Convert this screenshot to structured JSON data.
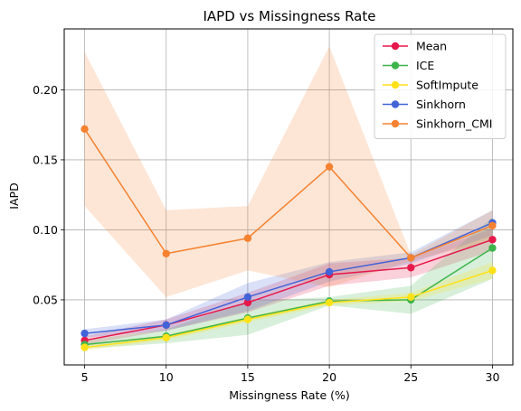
{
  "chart_data": {
    "type": "line",
    "title": "IAPD vs Missingness Rate",
    "xlabel": "Missingness Rate (%)",
    "ylabel": "IAPD",
    "x": [
      5,
      10,
      15,
      20,
      25,
      30
    ],
    "xticks": [
      "5",
      "10",
      "15",
      "20",
      "25",
      "30"
    ],
    "yticks": [
      0.05,
      0.1,
      0.15,
      0.2
    ],
    "ytick_labels": [
      "0.05",
      "0.10",
      "0.15",
      "0.20"
    ],
    "xlim": [
      3.75,
      31.25
    ],
    "ylim": [
      0.0035,
      0.2435
    ],
    "grid": true,
    "legend_position": "top-right",
    "series": [
      {
        "name": "Mean",
        "color": "#e6194b",
        "values": [
          0.021,
          0.032,
          0.048,
          0.068,
          0.073,
          0.093
        ],
        "lower": [
          0.018,
          0.028,
          0.041,
          0.06,
          0.066,
          0.085
        ],
        "upper": [
          0.024,
          0.036,
          0.055,
          0.076,
          0.08,
          0.101
        ]
      },
      {
        "name": "ICE",
        "color": "#3cb44b",
        "values": [
          0.018,
          0.024,
          0.037,
          0.049,
          0.05,
          0.087
        ],
        "lower": [
          0.015,
          0.019,
          0.025,
          0.046,
          0.04,
          0.065
        ],
        "upper": [
          0.021,
          0.029,
          0.049,
          0.052,
          0.06,
          0.109
        ]
      },
      {
        "name": "SoftImpute",
        "color": "#ffe119",
        "values": [
          0.016,
          0.023,
          0.036,
          0.048,
          0.052,
          0.071
        ],
        "lower": [
          0.014,
          0.021,
          0.034,
          0.046,
          0.049,
          0.065
        ],
        "upper": [
          0.018,
          0.025,
          0.038,
          0.05,
          0.055,
          0.077
        ]
      },
      {
        "name": "Sinkhorn",
        "color": "#4363d8",
        "values": [
          0.026,
          0.032,
          0.052,
          0.07,
          0.08,
          0.105
        ],
        "lower": [
          0.023,
          0.028,
          0.042,
          0.063,
          0.076,
          0.096
        ],
        "upper": [
          0.029,
          0.036,
          0.062,
          0.077,
          0.084,
          0.114
        ]
      },
      {
        "name": "Sinkhorn_CMI",
        "color": "#f58231",
        "values": [
          0.172,
          0.083,
          0.094,
          0.145,
          0.08,
          0.103
        ],
        "lower": [
          0.117,
          0.052,
          0.071,
          0.059,
          0.078,
          0.092
        ],
        "upper": [
          0.227,
          0.114,
          0.117,
          0.231,
          0.082,
          0.114
        ]
      }
    ]
  }
}
